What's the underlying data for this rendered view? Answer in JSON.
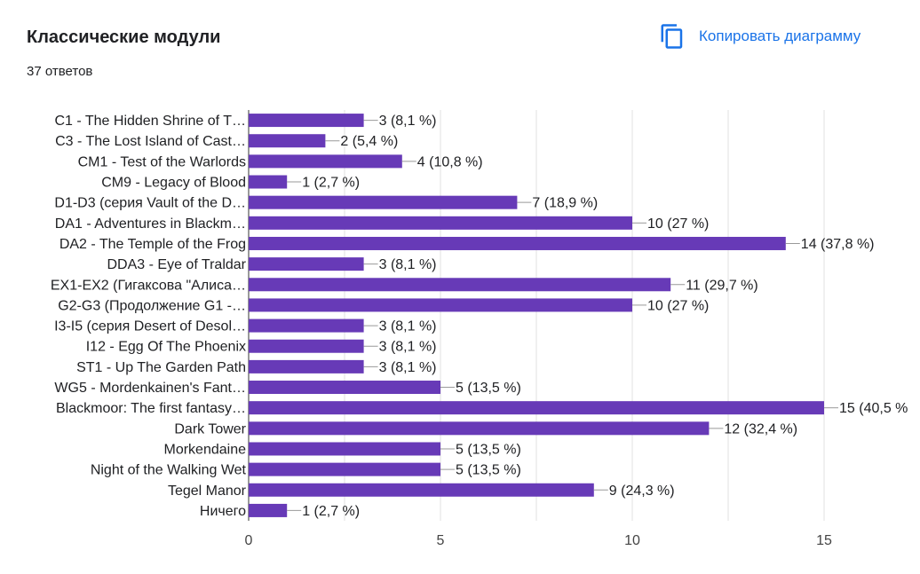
{
  "header": {
    "title": "Классические модули",
    "responses": "37 ответов",
    "copy_label": "Копировать диаграмму"
  },
  "colors": {
    "bar": "#673ab7",
    "accent": "#1a73e8",
    "grid": "#e0e0e0",
    "axis": "#333333"
  },
  "chart_data": {
    "type": "bar",
    "orientation": "horizontal",
    "title": "Классические модули",
    "categories": [
      "C1 - The Hidden Shrine of T…",
      "C3 - The Lost Island of Cast…",
      "CM1 - Test of the Warlords",
      "CM9 - Legacy of Blood",
      "D1-D3 (серия Vault of the D…",
      "DA1 - Adventures in Blackm…",
      "DA2 - The Temple of the Frog",
      "DDA3 - Eye of Traldar",
      "EX1-EX2 (Гигаксова \"Алиса…",
      "G2-G3 (Продолжение G1 -…",
      "I3-I5 (серия Desert of Desol…",
      "I12 - Egg Of The Phoenix",
      "ST1 - Up The Garden Path",
      "WG5 - Mordenkainen's Fant…",
      "Blackmoor: The first fantasy…",
      "Dark Tower",
      "Morkendaine",
      "Night of the Walking Wet",
      "Tegel Manor",
      "Ничего"
    ],
    "values": [
      3,
      2,
      4,
      1,
      7,
      10,
      14,
      3,
      11,
      10,
      3,
      3,
      3,
      5,
      15,
      12,
      5,
      5,
      9,
      1
    ],
    "labels": [
      "3 (8,1 %)",
      "2 (5,4 %)",
      "4 (10,8 %)",
      "1 (2,7 %)",
      "7 (18,9 %)",
      "10 (27 %)",
      "14 (37,8 %)",
      "3 (8,1 %)",
      "11 (29,7 %)",
      "10 (27 %)",
      "3 (8,1 %)",
      "3 (8,1 %)",
      "3 (8,1 %)",
      "5 (13,5 %)",
      "15 (40,5 %",
      "12 (32,4 %)",
      "5 (13,5 %)",
      "5 (13,5 %)",
      "9 (24,3 %)",
      "1 (2,7 %)"
    ],
    "xlim": [
      0,
      15
    ],
    "xticks": [
      "0",
      "5",
      "10",
      "15"
    ],
    "grid": true
  }
}
